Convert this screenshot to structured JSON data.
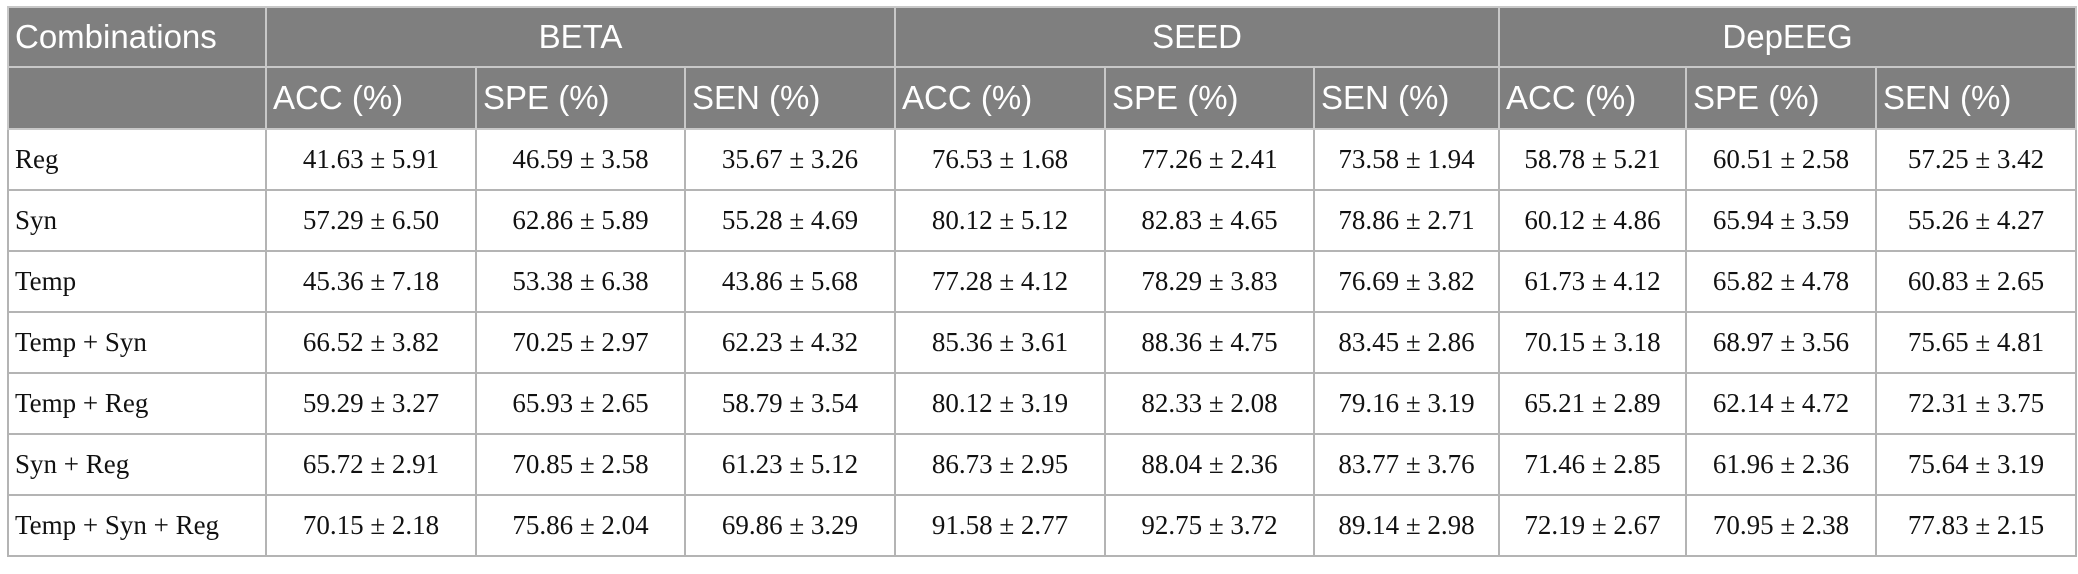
{
  "table": {
    "corner_label": "Combinations",
    "groups": [
      "BETA",
      "SEED",
      "DepEEG"
    ],
    "metrics": [
      "ACC (%)",
      "SPE (%)",
      "SEN (%)"
    ],
    "rows": [
      {
        "label": "Reg",
        "values": [
          "41.63 ± 5.91",
          "46.59 ± 3.58",
          "35.67 ± 3.26",
          "76.53 ± 1.68",
          "77.26 ± 2.41",
          "73.58 ± 1.94",
          "58.78 ± 5.21",
          "60.51 ± 2.58",
          "57.25 ± 3.42"
        ]
      },
      {
        "label": "Syn",
        "values": [
          "57.29 ± 6.50",
          "62.86 ± 5.89",
          "55.28 ± 4.69",
          "80.12 ± 5.12",
          "82.83 ± 4.65",
          "78.86 ± 2.71",
          "60.12 ± 4.86",
          "65.94 ± 3.59",
          "55.26 ± 4.27"
        ]
      },
      {
        "label": "Temp",
        "values": [
          "45.36 ± 7.18",
          "53.38 ± 6.38",
          "43.86 ± 5.68",
          "77.28 ± 4.12",
          "78.29 ± 3.83",
          "76.69 ± 3.82",
          "61.73 ± 4.12",
          "65.82 ± 4.78",
          "60.83 ± 2.65"
        ]
      },
      {
        "label": "Temp + Syn",
        "values": [
          "66.52 ± 3.82",
          "70.25 ± 2.97",
          "62.23 ± 4.32",
          "85.36 ± 3.61",
          "88.36 ± 4.75",
          "83.45 ± 2.86",
          "70.15 ± 3.18",
          "68.97 ± 3.56",
          "75.65 ± 4.81"
        ]
      },
      {
        "label": "Temp + Reg",
        "values": [
          "59.29 ± 3.27",
          "65.93 ± 2.65",
          "58.79 ± 3.54",
          "80.12 ± 3.19",
          "82.33 ± 2.08",
          "79.16 ± 3.19",
          "65.21 ± 2.89",
          "62.14 ± 4.72",
          "72.31 ± 3.75"
        ]
      },
      {
        "label": "Syn + Reg",
        "values": [
          "65.72 ± 2.91",
          "70.85 ± 2.58",
          "61.23 ± 5.12",
          "86.73 ± 2.95",
          "88.04 ± 2.36",
          "83.77 ± 3.76",
          "71.46 ± 2.85",
          "61.96 ± 2.36",
          "75.64 ± 3.19"
        ]
      },
      {
        "label": "Temp + Syn + Reg",
        "values": [
          "70.15 ± 2.18",
          "75.86 ± 2.04",
          "69.86 ± 3.29",
          "91.58 ± 2.77",
          "92.75 ± 3.72",
          "89.14 ± 2.98",
          "72.19 ± 2.67",
          "70.95 ± 2.38",
          "77.83 ± 2.15"
        ]
      }
    ]
  }
}
